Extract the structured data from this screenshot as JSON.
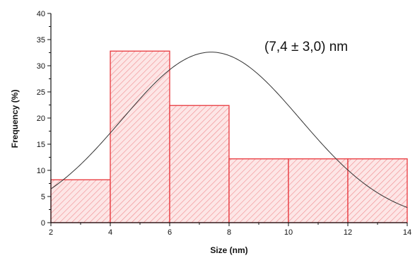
{
  "chart_data": {
    "type": "bar",
    "subtype": "histogram",
    "xlabel": "Size (nm)",
    "ylabel": "Frequency (%)",
    "xlim": [
      2,
      14
    ],
    "ylim": [
      0,
      40
    ],
    "xticks": [
      "2",
      "4",
      "6",
      "8",
      "10",
      "12",
      "14"
    ],
    "yticks": [
      "0",
      "5",
      "10",
      "15",
      "20",
      "25",
      "30",
      "35",
      "40"
    ],
    "bins": [
      {
        "x0": 2,
        "x1": 4,
        "value": 8.2
      },
      {
        "x0": 4,
        "x1": 6,
        "value": 32.8
      },
      {
        "x0": 6,
        "x1": 8,
        "value": 22.4
      },
      {
        "x0": 8,
        "x1": 10,
        "value": 12.2
      },
      {
        "x0": 10,
        "x1": 12,
        "value": 12.2
      },
      {
        "x0": 12,
        "x1": 14,
        "value": 12.2
      }
    ],
    "fit": {
      "type": "gaussian",
      "mean": 7.4,
      "sigma": 3.0,
      "peak": 32.6
    },
    "annotation": "(7,4 ± 3,0) nm",
    "grid": false,
    "colors": {
      "bar_fill": "#fde6e6",
      "bar_edge": "#e8383d",
      "hatch": "#f08a8e",
      "curve": "#333333",
      "axis": "#111111"
    }
  }
}
